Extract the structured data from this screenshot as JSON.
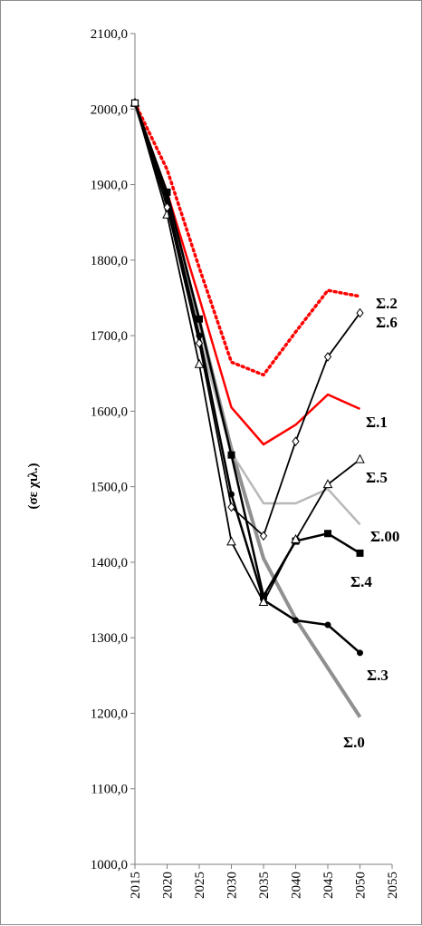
{
  "chart_data": {
    "type": "line",
    "title": "",
    "xlabel": "",
    "ylabel": "(σε χιλ.)",
    "x": [
      2015,
      2020,
      2025,
      2030,
      2035,
      2040,
      2045,
      2050
    ],
    "xticks": [
      "2015",
      "2020",
      "2025",
      "2030",
      "2035",
      "2040",
      "2045",
      "2050",
      "2055"
    ],
    "xlim": [
      2015,
      2055
    ],
    "ylim": [
      1000,
      2100
    ],
    "yticks": [
      "1000,0",
      "1100,0",
      "1200,0",
      "1300,0",
      "1400,0",
      "1500,0",
      "1600,0",
      "1700,0",
      "1800,0",
      "1900,0",
      "2000,0",
      "2100,0"
    ],
    "grid": false,
    "series": [
      {
        "name": "Σ.0",
        "color": "#909090",
        "values": [
          2008,
          1880,
          1720,
          1550,
          1405,
          1325,
          1260,
          1195
        ]
      },
      {
        "name": "Σ.00",
        "color": "#b8b8b8",
        "values": [
          2008,
          1880,
          1700,
          1545,
          1478,
          1478,
          1497,
          1450
        ]
      },
      {
        "name": "Σ.1",
        "color": "#ff0000",
        "values": [
          2008,
          1890,
          1750,
          1605,
          1556,
          1582,
          1622,
          1603
        ]
      },
      {
        "name": "Σ.2",
        "color": "#ff0000",
        "values": [
          2008,
          1920,
          1790,
          1665,
          1648,
          1705,
          1760,
          1752
        ]
      },
      {
        "name": "Σ.3",
        "color": "#000000",
        "values": [
          2008,
          1880,
          1700,
          1490,
          1350,
          1323,
          1317,
          1280
        ]
      },
      {
        "name": "Σ.4",
        "color": "#000000",
        "values": [
          2008,
          1890,
          1722,
          1542,
          1355,
          1428,
          1438,
          1412
        ]
      },
      {
        "name": "Σ.5",
        "color": "#000000",
        "values": [
          2008,
          1860,
          1662,
          1427,
          1347,
          1430,
          1503,
          1536
        ]
      },
      {
        "name": "Σ.6",
        "color": "#000000",
        "values": [
          2008,
          1870,
          1690,
          1473,
          1435,
          1560,
          1672,
          1730
        ]
      }
    ]
  }
}
